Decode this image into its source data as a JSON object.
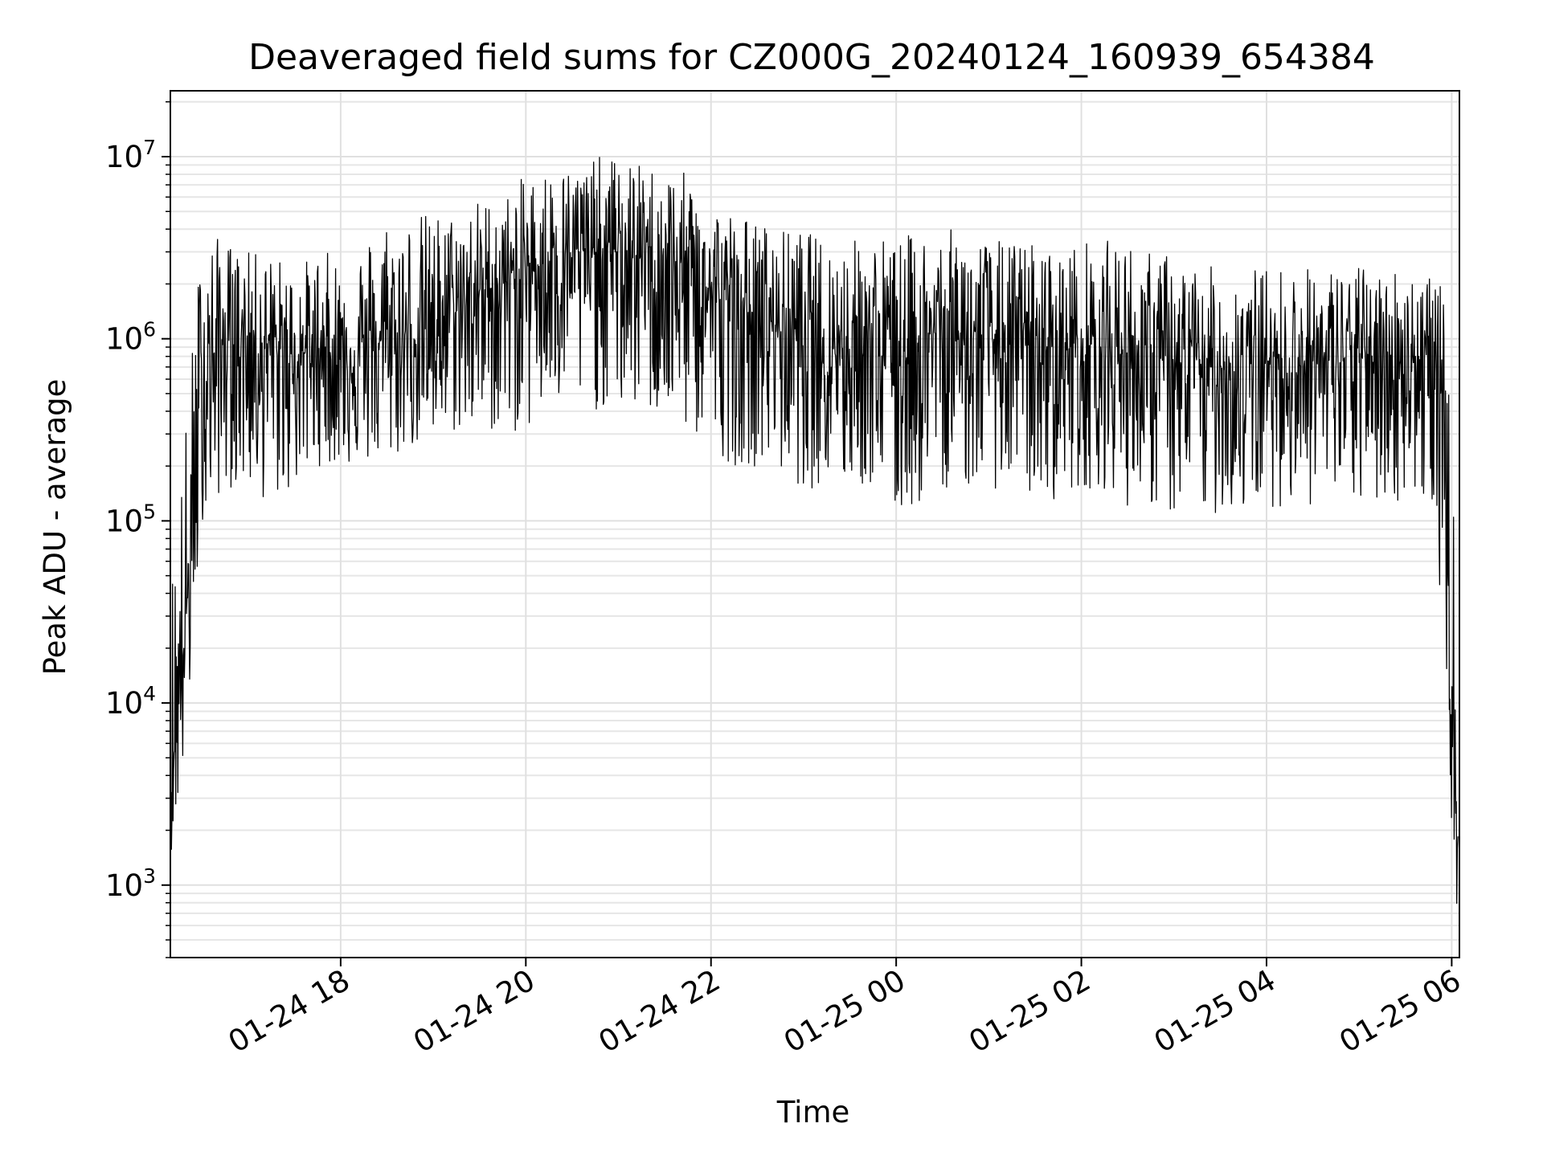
{
  "chart_data": {
    "type": "line",
    "title": "Deaveraged field sums for CZ000G_20240124_160939_654384",
    "xlabel": "Time",
    "ylabel": "Peak ADU - average",
    "yscale": "log",
    "ylim": [
      400,
      23000000
    ],
    "xlim": [
      "2024-01-24 16:09:39",
      "2024-01-25 06:05:00"
    ],
    "grid": true,
    "x_ticks": [
      {
        "value": "2024-01-24 18:00",
        "label": "01-24 18"
      },
      {
        "value": "2024-01-24 20:00",
        "label": "01-24 20"
      },
      {
        "value": "2024-01-24 22:00",
        "label": "01-24 22"
      },
      {
        "value": "2024-01-25 00:00",
        "label": "01-25 00"
      },
      {
        "value": "2024-01-25 02:00",
        "label": "01-25 02"
      },
      {
        "value": "2024-01-25 04:00",
        "label": "01-25 04"
      },
      {
        "value": "2024-01-25 06:00",
        "label": "01-25 06"
      }
    ],
    "y_ticks": [
      {
        "value": 1000,
        "base": "10",
        "exp": "3"
      },
      {
        "value": 10000,
        "base": "10",
        "exp": "4"
      },
      {
        "value": 100000,
        "base": "10",
        "exp": "5"
      },
      {
        "value": 1000000,
        "base": "10",
        "exp": "6"
      },
      {
        "value": 10000000,
        "base": "10",
        "exp": "7"
      }
    ],
    "series": [
      {
        "color": "#000000",
        "x": [
          "2024-01-24 16:10",
          "2024-01-24 16:20",
          "2024-01-24 16:30",
          "2024-01-24 16:45",
          "2024-01-24 17:00",
          "2024-01-24 17:15",
          "2024-01-24 17:30",
          "2024-01-24 17:45",
          "2024-01-24 18:00",
          "2024-01-24 18:15",
          "2024-01-24 18:30",
          "2024-01-24 18:45",
          "2024-01-24 19:00",
          "2024-01-24 19:15",
          "2024-01-24 19:30",
          "2024-01-24 19:45",
          "2024-01-24 20:00",
          "2024-01-24 20:15",
          "2024-01-24 20:30",
          "2024-01-24 20:45",
          "2024-01-24 21:00",
          "2024-01-24 21:15",
          "2024-01-24 21:30",
          "2024-01-24 21:45",
          "2024-01-24 22:00",
          "2024-01-24 22:15",
          "2024-01-24 22:30",
          "2024-01-24 22:45",
          "2024-01-24 23:00",
          "2024-01-24 23:15",
          "2024-01-24 23:30",
          "2024-01-24 23:45",
          "2024-01-25 00:00",
          "2024-01-25 00:15",
          "2024-01-25 00:30",
          "2024-01-25 00:45",
          "2024-01-25 01:00",
          "2024-01-25 01:15",
          "2024-01-25 01:30",
          "2024-01-25 01:45",
          "2024-01-25 02:00",
          "2024-01-25 02:15",
          "2024-01-25 02:30",
          "2024-01-25 02:45",
          "2024-01-25 03:00",
          "2024-01-25 03:15",
          "2024-01-25 03:30",
          "2024-01-25 03:45",
          "2024-01-25 04:00",
          "2024-01-25 04:15",
          "2024-01-25 04:30",
          "2024-01-25 04:45",
          "2024-01-25 05:00",
          "2024-01-25 05:15",
          "2024-01-25 05:30",
          "2024-01-25 05:45",
          "2024-01-25 05:55",
          "2024-01-25 06:00",
          "2024-01-25 06:04"
        ],
        "values": [
          4000,
          30000,
          600000,
          1000000,
          1000000,
          900000,
          800000,
          900000,
          800000,
          900000,
          1000000,
          1000000,
          1200000,
          1500000,
          1800000,
          2000000,
          2400000,
          2700000,
          3000000,
          3000000,
          3000000,
          2800000,
          2500000,
          2200000,
          1800000,
          1500000,
          1300000,
          1200000,
          1100000,
          1000000,
          950000,
          900000,
          800000,
          1000000,
          1100000,
          1000000,
          1000000,
          950000,
          900000,
          900000,
          900000,
          900000,
          850000,
          800000,
          700000,
          700000,
          700000,
          700000,
          750000,
          750000,
          750000,
          750000,
          800000,
          800000,
          800000,
          800000,
          300000,
          8000,
          2000
        ],
        "envelope_high": [
          60000,
          400000,
          4000000,
          3500000,
          3000000,
          3000000,
          2500000,
          3000000,
          3000000,
          3500000,
          5000000,
          5000000,
          5000000,
          5000000,
          6000000,
          6000000,
          8000000,
          9000000,
          9000000,
          10000000,
          10000000,
          9000000,
          9000000,
          8000000,
          6000000,
          5000000,
          4500000,
          4000000,
          4000000,
          3500000,
          3500000,
          4000000,
          3500000,
          4000000,
          4000000,
          4000000,
          3500000,
          3500000,
          3500000,
          3000000,
          3500000,
          3500000,
          3500000,
          3000000,
          3000000,
          2500000,
          2500000,
          2500000,
          2500000,
          2500000,
          2500000,
          2500000,
          2500000,
          2500000,
          2500000,
          2500000,
          1800000,
          300000,
          15000
        ],
        "envelope_low": [
          1500,
          5000,
          100000,
          150000,
          150000,
          120000,
          150000,
          200000,
          200000,
          200000,
          200000,
          250000,
          250000,
          300000,
          300000,
          300000,
          300000,
          400000,
          400000,
          400000,
          400000,
          400000,
          350000,
          300000,
          250000,
          200000,
          200000,
          180000,
          150000,
          150000,
          150000,
          150000,
          100000,
          120000,
          150000,
          150000,
          150000,
          150000,
          130000,
          130000,
          150000,
          150000,
          120000,
          120000,
          100000,
          100000,
          110000,
          110000,
          120000,
          120000,
          120000,
          120000,
          120000,
          120000,
          130000,
          120000,
          30000,
          2000,
          600
        ]
      }
    ]
  }
}
